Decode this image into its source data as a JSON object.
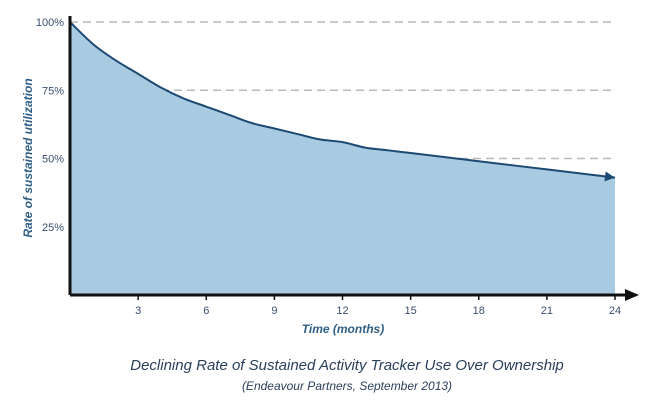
{
  "chart_data": {
    "type": "area",
    "ylabel": "Rate of sustained utilization",
    "xlabel": "Time (months)",
    "x_ticks": [
      3,
      6,
      9,
      12,
      15,
      18,
      21,
      24
    ],
    "y_ticks": [
      {
        "value": 25,
        "label": "25%"
      },
      {
        "value": 50,
        "label": "50%"
      },
      {
        "value": 75,
        "label": "75%"
      },
      {
        "value": 100,
        "label": "100%"
      }
    ],
    "xlim": [
      0,
      24
    ],
    "ylim": [
      0,
      100
    ],
    "grid": "horizontal dashed",
    "series": [
      {
        "x": [
          0,
          1,
          2,
          3,
          4,
          5,
          6,
          7,
          8,
          9,
          10,
          11,
          12,
          13,
          14,
          15,
          16,
          17,
          18,
          19,
          20,
          21,
          22,
          23,
          24
        ],
        "values": [
          100,
          92,
          86,
          81,
          76,
          72,
          69,
          66,
          63,
          61,
          59,
          57,
          56,
          54,
          53,
          52,
          51,
          50,
          49,
          48,
          47,
          46,
          45,
          44,
          43
        ]
      }
    ],
    "colors": {
      "fill": "#a9cbe2",
      "line": "#1c4a73",
      "axis": "#111111",
      "grid": "#b9b9b9"
    }
  },
  "caption": {
    "title": "Declining Rate of Sustained Activity Tracker Use Over Ownership",
    "source": "(Endeavour Partners, September 2013)"
  }
}
